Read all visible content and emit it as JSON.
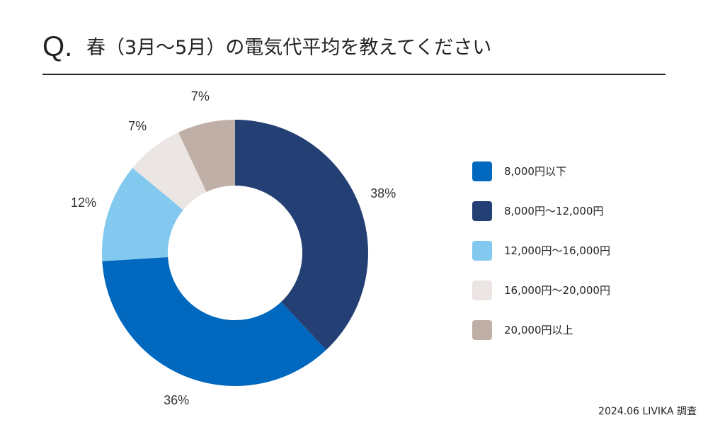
{
  "question": {
    "mark": "Q.",
    "text": "春（3月〜5月）の電気代平均を教えてください"
  },
  "chart_data": {
    "type": "pie",
    "style": "donut",
    "title": "春（3月〜5月）の電気代平均を教えてください",
    "categories": [
      "8,000円以下",
      "8,000円〜12,000円",
      "12,000円〜16,000円",
      "16,000円〜20,000円",
      "20,000円以上"
    ],
    "values": [
      36,
      38,
      12,
      7,
      7
    ],
    "labels": [
      "36%",
      "38%",
      "12%",
      "7%",
      "7%"
    ],
    "colors": [
      "#0068bf",
      "#243f73",
      "#82c8ef",
      "#ebe6e3",
      "#c0afa6"
    ],
    "slice_order": [
      1,
      0,
      2,
      3,
      4
    ],
    "legend_position": "right",
    "legend_order": [
      0,
      1,
      2,
      3,
      4
    ]
  },
  "footer": {
    "source": "2024.06 LIVIKA 調査"
  }
}
